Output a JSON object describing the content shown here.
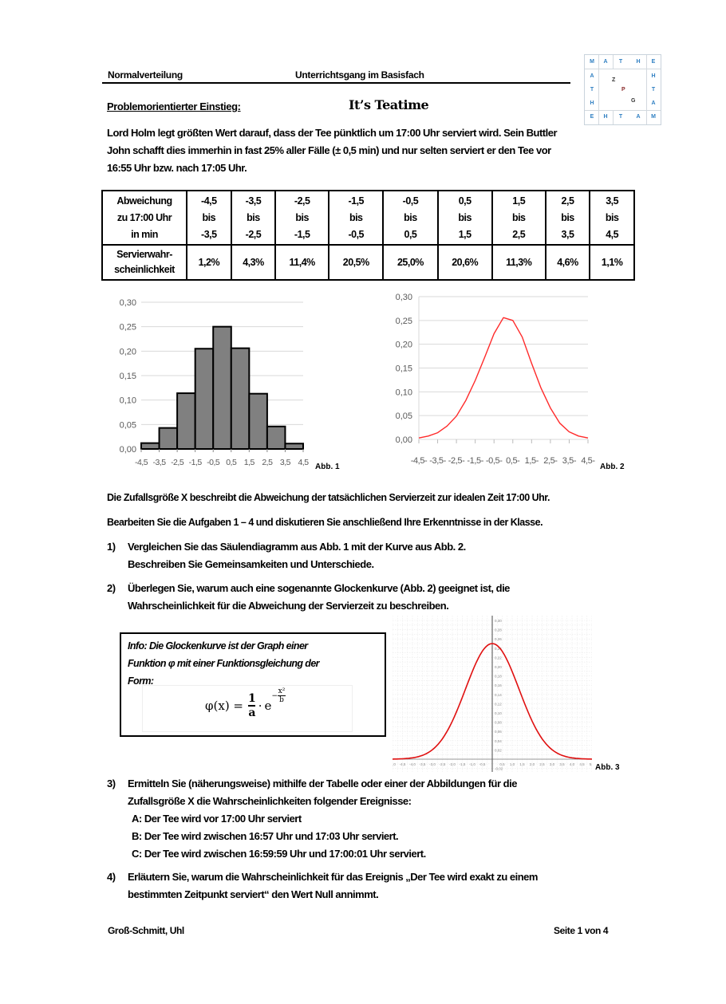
{
  "header": {
    "topic": "Normalverteilung",
    "course": "Unterrichtsgang im Basisfach",
    "logo": {
      "top_row": [
        "M",
        "A",
        "T",
        "H",
        "E"
      ],
      "bottom_row": [
        "E",
        "H",
        "T",
        "A",
        "M"
      ],
      "left_col": [
        "A",
        "T",
        "H"
      ],
      "right_col": [
        "H",
        "T",
        "A"
      ],
      "diagonal": [
        "Z",
        "P",
        "G"
      ]
    }
  },
  "section": {
    "label": "Problemorientierter Einstieg:",
    "title": "It’s Teatime"
  },
  "intro": {
    "lines": [
      "Lord Holm legt größten Wert darauf, dass der Tee pünktlich um 17:00 Uhr serviert wird. Sein Buttler",
      "John schafft dies immerhin in fast 25% aller Fälle (± 0,5 min) und nur selten serviert er den Tee vor",
      "16:55 Uhr bzw. nach 17:05 Uhr."
    ]
  },
  "table": {
    "row_header_1": [
      "Abweichung",
      "zu 17:00 Uhr",
      "in min"
    ],
    "row_header_2": [
      "Servierwahr-",
      "scheinlichkeit"
    ],
    "intervals": [
      {
        "from": "-4,5",
        "sep": "bis",
        "to": "-3,5"
      },
      {
        "from": "-3,5",
        "sep": "bis",
        "to": "-2,5"
      },
      {
        "from": "-2,5",
        "sep": "bis",
        "to": "-1,5"
      },
      {
        "from": "-1,5",
        "sep": "bis",
        "to": "-0,5"
      },
      {
        "from": "-0,5",
        "sep": "bis",
        "to": "0,5"
      },
      {
        "from": "0,5",
        "sep": "bis",
        "to": "1,5"
      },
      {
        "from": "1,5",
        "sep": "bis",
        "to": "2,5"
      },
      {
        "from": "2,5",
        "sep": "bis",
        "to": "3,5"
      },
      {
        "from": "3,5",
        "sep": "bis",
        "to": "4,5"
      }
    ],
    "probabilities": [
      "1,2%",
      "4,3%",
      "11,4%",
      "20,5%",
      "25,0%",
      "20,6%",
      "11,3%",
      "4,6%",
      "1,1%"
    ]
  },
  "chart_data": [
    {
      "type": "bar",
      "caption": "Abb. 1",
      "title": "",
      "xlabel": "",
      "ylabel": "",
      "categories": [
        "-4,5 bis -3,5",
        "-3,5 bis -2,5",
        "-2,5 bis -1,5",
        "-1,5 bis -0,5",
        "-0,5 bis 0,5",
        "0,5 bis 1,5",
        "1,5 bis 2,5",
        "2,5 bis 3,5",
        "3,5 bis 4,5"
      ],
      "x_tick_labels": [
        "-4,5",
        "-3,5",
        "-2,5",
        "-1,5",
        "-0,5",
        "0,5",
        "1,5",
        "2,5",
        "3,5",
        "4,5"
      ],
      "values": [
        0.012,
        0.043,
        0.114,
        0.205,
        0.25,
        0.206,
        0.113,
        0.046,
        0.011
      ],
      "y_tick_labels": [
        "0,00",
        "0,05",
        "0,10",
        "0,15",
        "0,20",
        "0,25",
        "0,30"
      ],
      "ylim": [
        0,
        0.3
      ],
      "grid": true,
      "bar_color": "#808080"
    },
    {
      "type": "line",
      "caption": "Abb. 2",
      "title": "",
      "xlabel": "",
      "ylabel": "",
      "x_tick_labels": [
        "-4,5",
        "-3,5",
        "-2,5",
        "-1,5",
        "-0,5",
        "0,5",
        "1,5",
        "2,5",
        "3,5",
        "4,5"
      ],
      "x": [
        -4.5,
        -4.0,
        -3.5,
        -3.0,
        -2.5,
        -2.0,
        -1.5,
        -1.0,
        -0.5,
        0.0,
        0.5,
        1.0,
        1.5,
        2.0,
        2.5,
        3.0,
        3.5,
        4.0,
        4.5
      ],
      "values": [
        0.003,
        0.007,
        0.014,
        0.028,
        0.049,
        0.082,
        0.124,
        0.172,
        0.222,
        0.256,
        0.25,
        0.215,
        0.16,
        0.108,
        0.066,
        0.034,
        0.016,
        0.007,
        0.003
      ],
      "y_tick_labels": [
        "0,00",
        "0,05",
        "0,10",
        "0,15",
        "0,20",
        "0,25",
        "0,30"
      ],
      "ylim": [
        0,
        0.3
      ],
      "grid": true,
      "line_color": "#ff2a2a"
    },
    {
      "type": "line",
      "caption": "Abb. 3",
      "title": "",
      "x_tick_labels": [
        "-5,0",
        "-4,5",
        "-4,0",
        "-3,5",
        "-3,0",
        "-2,5",
        "-2,0",
        "-1,5",
        "-1,0",
        "-0,5",
        "0,5",
        "1,0",
        "1,5",
        "2,0",
        "2,5",
        "3,0",
        "3,5",
        "4,0",
        "4,5",
        "5,0"
      ],
      "y_tick_labels": [
        "-0,02",
        "0,02",
        "0,04",
        "0,06",
        "0,08",
        "0,10",
        "0,12",
        "0,14",
        "0,16",
        "0,18",
        "0,20",
        "0,22",
        "0,24",
        "0,26",
        "0,28",
        "0,30"
      ],
      "x": [
        -5,
        -4,
        -3,
        -2,
        -1,
        0,
        1,
        2,
        3,
        4,
        5
      ],
      "values": [
        0.004,
        0.014,
        0.042,
        0.1,
        0.18,
        0.25,
        0.18,
        0.1,
        0.042,
        0.014,
        0.004
      ],
      "xlim": [
        -5,
        5
      ],
      "ylim": [
        -0.02,
        0.3
      ],
      "grid": true,
      "line_color": "#e01010"
    }
  ],
  "body": {
    "line1": "Die Zufallsgröße  X  beschreibt die Abweichung der tatsächlichen Servierzeit zur idealen Zeit  17:00 Uhr.",
    "line2": "Bearbeiten Sie die Aufgaben  1 – 4  und diskutieren Sie anschließend Ihre Erkenntnisse in der Klasse."
  },
  "tasks": [
    {
      "num": "1)",
      "lines": [
        "Vergleichen Sie das Säulendiagramm aus Abb. 1 mit der Kurve aus Abb. 2.",
        "Beschreiben Sie Gemeinsamkeiten und Unterschiede."
      ]
    },
    {
      "num": "2)",
      "lines": [
        "Überlegen Sie, warum auch eine sogenannte Glockenkurve (Abb. 2) geeignet ist, die",
        "Wahrscheinlichkeit für die Abweichung der Servierzeit zu beschreiben."
      ]
    },
    {
      "num": "3)",
      "lines": [
        "Ermitteln Sie (näherungsweise) mithilfe der Tabelle oder einer der Abbildungen für die",
        "Zufallsgröße  X  die Wahrscheinlichkeiten folgender Ereignisse:"
      ],
      "events": [
        "A:  Der Tee wird vor  17:00 Uhr  serviert",
        "B:  Der Tee wird zwischen  16:57 Uhr  und  17:03 Uhr  serviert.",
        "C:  Der Tee wird zwischen  16:59:59 Uhr  und  17:00:01 Uhr  serviert."
      ]
    },
    {
      "num": "4)",
      "lines": [
        "Erläutern Sie, warum die Wahrscheinlichkeit für das Ereignis „Der Tee wird exakt zu einem",
        "bestimmten Zeitpunkt serviert“ den Wert Null annimmt."
      ]
    }
  ],
  "info": {
    "lines": [
      "Info: Die Glockenkurve ist der Graph einer",
      "Funktion  φ  mit einer Funktionsgleichung der",
      "Form:"
    ],
    "formula": {
      "lhs": "φ(x) =",
      "num": "1",
      "den": "a",
      "dot": "·",
      "base": "e",
      "exp_sign": "−",
      "exp_num": "x²",
      "exp_den": "b"
    }
  },
  "footer": {
    "authors": "Groß-Schmitt, Uhl",
    "page": "Seite 1 von 4"
  }
}
